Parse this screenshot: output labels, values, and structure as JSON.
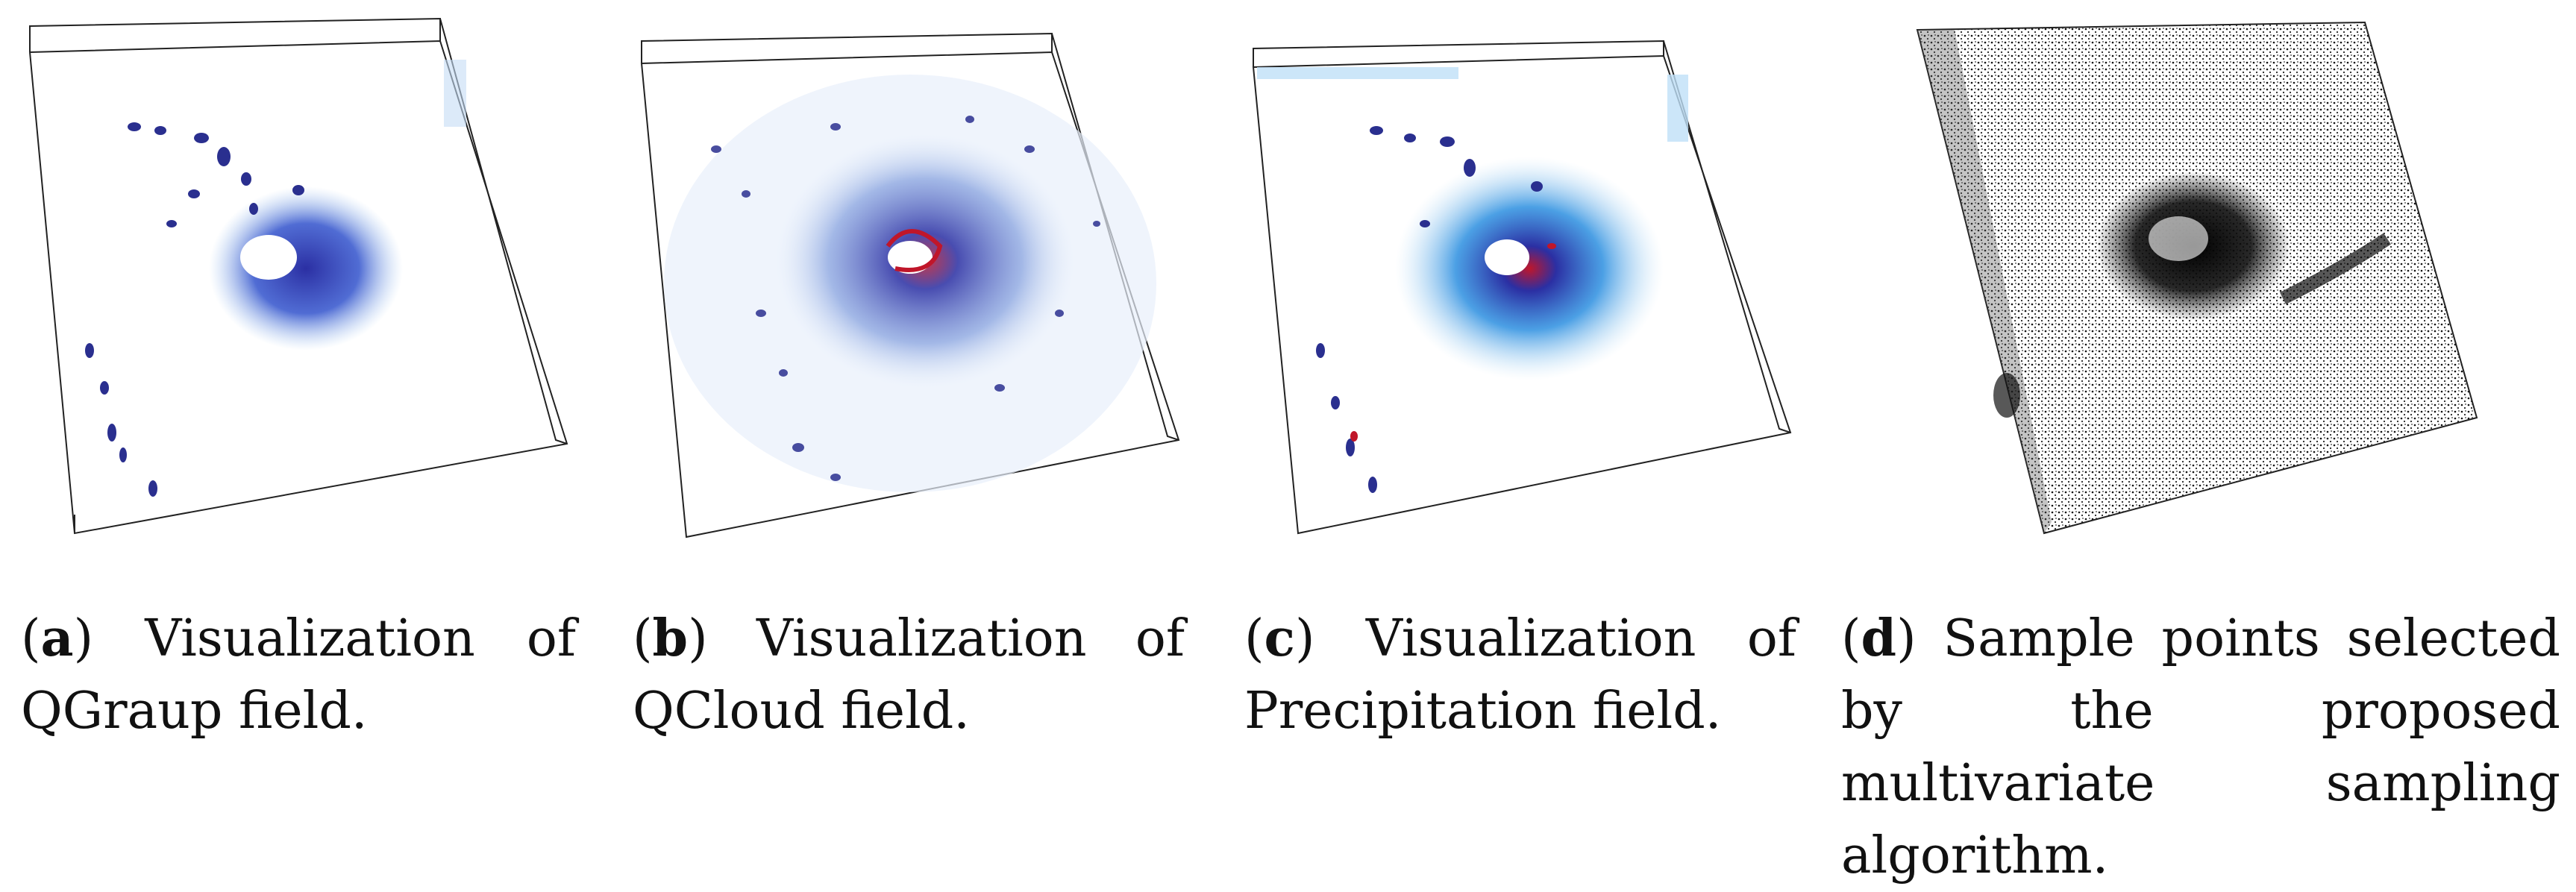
{
  "figure": {
    "panels": [
      {
        "id": "a",
        "tag": "a",
        "caption": "Visualization of QGraup field.",
        "colormap": "blue"
      },
      {
        "id": "b",
        "tag": "b",
        "caption": "Visualization of QCloud field.",
        "colormap": "blue-red"
      },
      {
        "id": "c",
        "tag": "c",
        "caption": "Visualization of Precipitation field.",
        "colormap": "cyan-blue-red"
      },
      {
        "id": "d",
        "tag": "d",
        "caption": "Sample points selected by the proposed multivariate sampling algorithm.",
        "colormap": "black-points"
      }
    ]
  }
}
